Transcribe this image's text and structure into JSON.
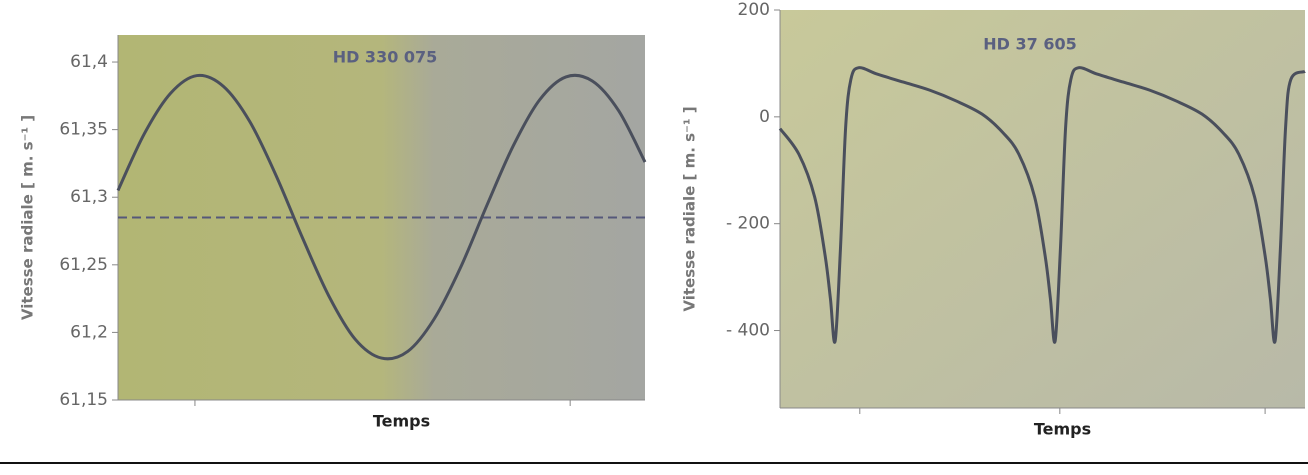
{
  "chart_data": [
    {
      "type": "line",
      "title": "HD 330 075",
      "xlabel": "Temps",
      "ylabel": "Vitesse radiale  [ m. s⁻¹ ]",
      "x": [
        0,
        0.5,
        1,
        1.5,
        2,
        2.5,
        3,
        3.5,
        4,
        4.5,
        5,
        5.5,
        6,
        6.5,
        7,
        7.5,
        8,
        8.5,
        9,
        9.5,
        10
      ],
      "series": [
        {
          "color": "#4a4f5c",
          "values": [
            61.305,
            61.347,
            61.377,
            61.39,
            61.382,
            61.356,
            61.316,
            61.27,
            61.227,
            61.195,
            61.181,
            61.186,
            61.21,
            61.248,
            61.294,
            61.338,
            61.372,
            61.389,
            61.386,
            61.364,
            61.326
          ]
        }
      ],
      "hlines": [
        61.285
      ],
      "hline_color": "#55587a",
      "xlim": [
        0,
        10
      ],
      "xticks": [
        1.46,
        8.58
      ],
      "ylim": [
        61.15,
        61.42
      ],
      "yticks": [
        {
          "value": 61.15,
          "label": "61,15"
        },
        {
          "value": 61.2,
          "label": "61,2"
        },
        {
          "value": 61.25,
          "label": "61,25"
        },
        {
          "value": 61.3,
          "label": "61,3"
        },
        {
          "value": 61.35,
          "label": "61,35"
        },
        {
          "value": 61.4,
          "label": "61,4"
        }
      ],
      "grid": false
    },
    {
      "type": "line",
      "title": "HD 37 605",
      "xlabel": "Temps",
      "ylabel": "Vitesse radiale  [ m. s⁻¹ ]",
      "x": [
        0,
        0.36,
        0.66,
        0.86,
        0.96,
        1.05,
        1.15,
        1.25,
        1.35,
        1.5,
        1.85,
        2.35,
        2.85,
        3.35,
        3.85,
        4.25,
        4.55,
        4.85,
        5.05,
        5.15,
        5.24,
        5.34,
        5.44,
        5.54,
        5.69,
        6.04,
        6.54,
        7.04,
        7.54,
        8.04,
        8.44,
        8.74,
        9.04,
        9.24,
        9.34,
        9.43,
        9.53,
        9.63,
        9.73,
        10
      ],
      "series": [
        {
          "color": "#4a4f5c",
          "values": [
            -22,
            -70,
            -150,
            -260,
            -340,
            -420,
            -250,
            -20,
            70,
            92,
            80,
            65,
            50,
            30,
            5,
            -30,
            -70,
            -150,
            -260,
            -340,
            -420,
            -250,
            -20,
            70,
            92,
            80,
            65,
            50,
            30,
            5,
            -30,
            -70,
            -150,
            -260,
            -340,
            -420,
            -250,
            -20,
            70,
            85
          ]
        }
      ],
      "xlim": [
        0,
        10
      ],
      "xticks": [
        1.52,
        5.33,
        9.24
      ],
      "ylim": [
        -545,
        200
      ],
      "yticks": [
        {
          "value": -400,
          "label": "- 400"
        },
        {
          "value": -200,
          "label": "- 200"
        },
        0,
        200
      ],
      "grid": false
    }
  ]
}
